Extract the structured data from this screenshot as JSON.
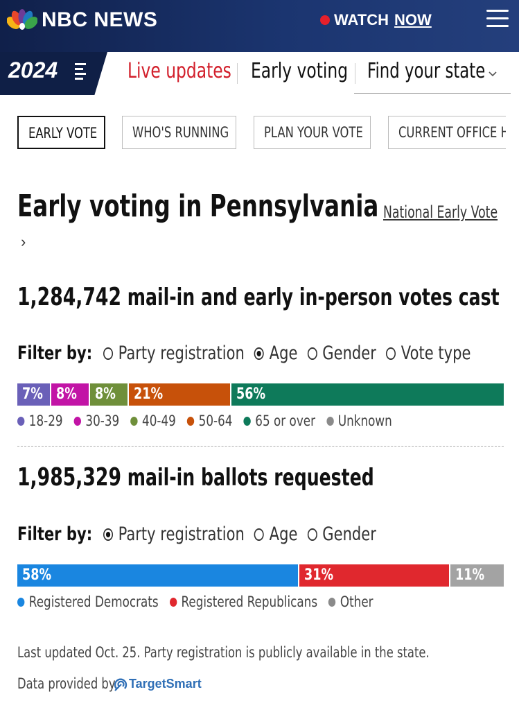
{
  "header": {
    "brand": "NBC NEWS",
    "watch": "WATCH",
    "now": "NOW"
  },
  "nav": {
    "badge": "2024",
    "items": [
      {
        "label": "Live updates",
        "color": "#d21f2b"
      },
      {
        "label": "Early voting"
      },
      {
        "label": "Find your state"
      }
    ]
  },
  "tabs": [
    {
      "label": "EARLY VOTE",
      "active": true
    },
    {
      "label": "WHO'S RUNNING"
    },
    {
      "label": "PLAN YOUR VOTE"
    },
    {
      "label": "CURRENT OFFICE H"
    }
  ],
  "page": {
    "title": "Early voting in Pennsylvania",
    "national_link": "National Early Vote",
    "chevron": "›"
  },
  "votes_cast": {
    "number": "1,284,742",
    "label": "mail-in and early in-person votes cast",
    "filter_label": "Filter by:",
    "filters": [
      {
        "label": "Party registration",
        "selected": false
      },
      {
        "label": "Age",
        "selected": true
      },
      {
        "label": "Gender",
        "selected": false
      },
      {
        "label": "Vote type",
        "selected": false
      }
    ],
    "segments": [
      {
        "label": "7%",
        "value": 7,
        "color": "#6a60b8"
      },
      {
        "label": "8%",
        "value": 8,
        "color": "#c214a6"
      },
      {
        "label": "8%",
        "value": 8,
        "color": "#6f8f3a"
      },
      {
        "label": "21%",
        "value": 21,
        "color": "#c7510a"
      },
      {
        "label": "56%",
        "value": 56,
        "color": "#0e7a5a"
      }
    ],
    "legend": [
      {
        "label": "18-29",
        "color": "#6a60b8"
      },
      {
        "label": "30-39",
        "color": "#c214a6"
      },
      {
        "label": "40-49",
        "color": "#6f8f3a"
      },
      {
        "label": "50-64",
        "color": "#c7510a"
      },
      {
        "label": "65 or over",
        "color": "#0e7a5a"
      },
      {
        "label": "Unknown",
        "color": "#8a8a8a"
      }
    ]
  },
  "ballots_requested": {
    "number": "1,985,329",
    "label": "mail-in ballots requested",
    "filter_label": "Filter by:",
    "filters": [
      {
        "label": "Party registration",
        "selected": true
      },
      {
        "label": "Age",
        "selected": false
      },
      {
        "label": "Gender",
        "selected": false
      }
    ],
    "segments": [
      {
        "label": "58%",
        "value": 58,
        "color": "#1a86e0"
      },
      {
        "label": "31%",
        "value": 31,
        "color": "#e0282e"
      },
      {
        "label": "11%",
        "value": 11,
        "color": "#a3a3a3"
      }
    ],
    "legend": [
      {
        "label": "Registered Democrats",
        "color": "#1a86e0"
      },
      {
        "label": "Registered Republicans",
        "color": "#e0282e"
      },
      {
        "label": "Other",
        "color": "#8a8a8a"
      }
    ]
  },
  "footer": {
    "updated": "Last updated Oct. 25. Party registration is publicly available in the state.",
    "provided_by": "Data provided by",
    "provider": "TargetSmart"
  }
}
